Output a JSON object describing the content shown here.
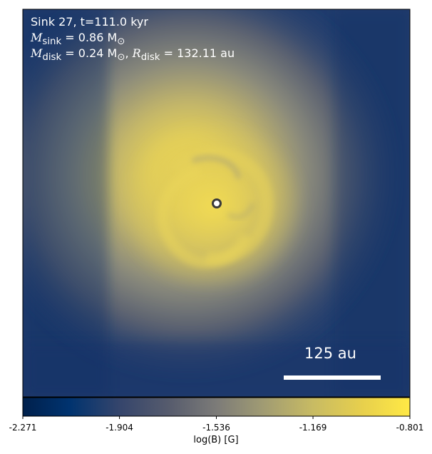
{
  "chart_data": {
    "type": "heatmap",
    "quantity": "log(B) [G]",
    "colormap": "cividis",
    "colorbar": {
      "orientation": "horizontal",
      "min": -2.271,
      "max": -0.801,
      "ticks": [
        "-2.271",
        "-1.904",
        "-1.536",
        "-1.169",
        "-0.801"
      ],
      "label": "log(B) [G]"
    },
    "annotations": {
      "title": "Sink 27, t=111.0 kyr",
      "msink_label": "M",
      "msink_sub": "sink",
      "msink_value": " = 0.86 M",
      "msink_unit_sub": "⊙",
      "mdisk_label": "M",
      "mdisk_sub": "disk",
      "mdisk_value": " = 0.24 M",
      "mdisk_unit_sub": "⊙",
      "rdisk_sep": ", ",
      "rdisk_label": "R",
      "rdisk_sub": "disk",
      "rdisk_value": " = 132.11 au"
    },
    "sink": {
      "name": "Sink 27",
      "time_kyr": 111.0,
      "m_sink_msun": 0.86,
      "m_disk_msun": 0.24,
      "r_disk_au": 132.11
    },
    "scale_bar": {
      "label": "125 au",
      "length_au": 125
    },
    "field_description": {
      "peak_value": -0.85,
      "background_value": -2.25
    }
  }
}
